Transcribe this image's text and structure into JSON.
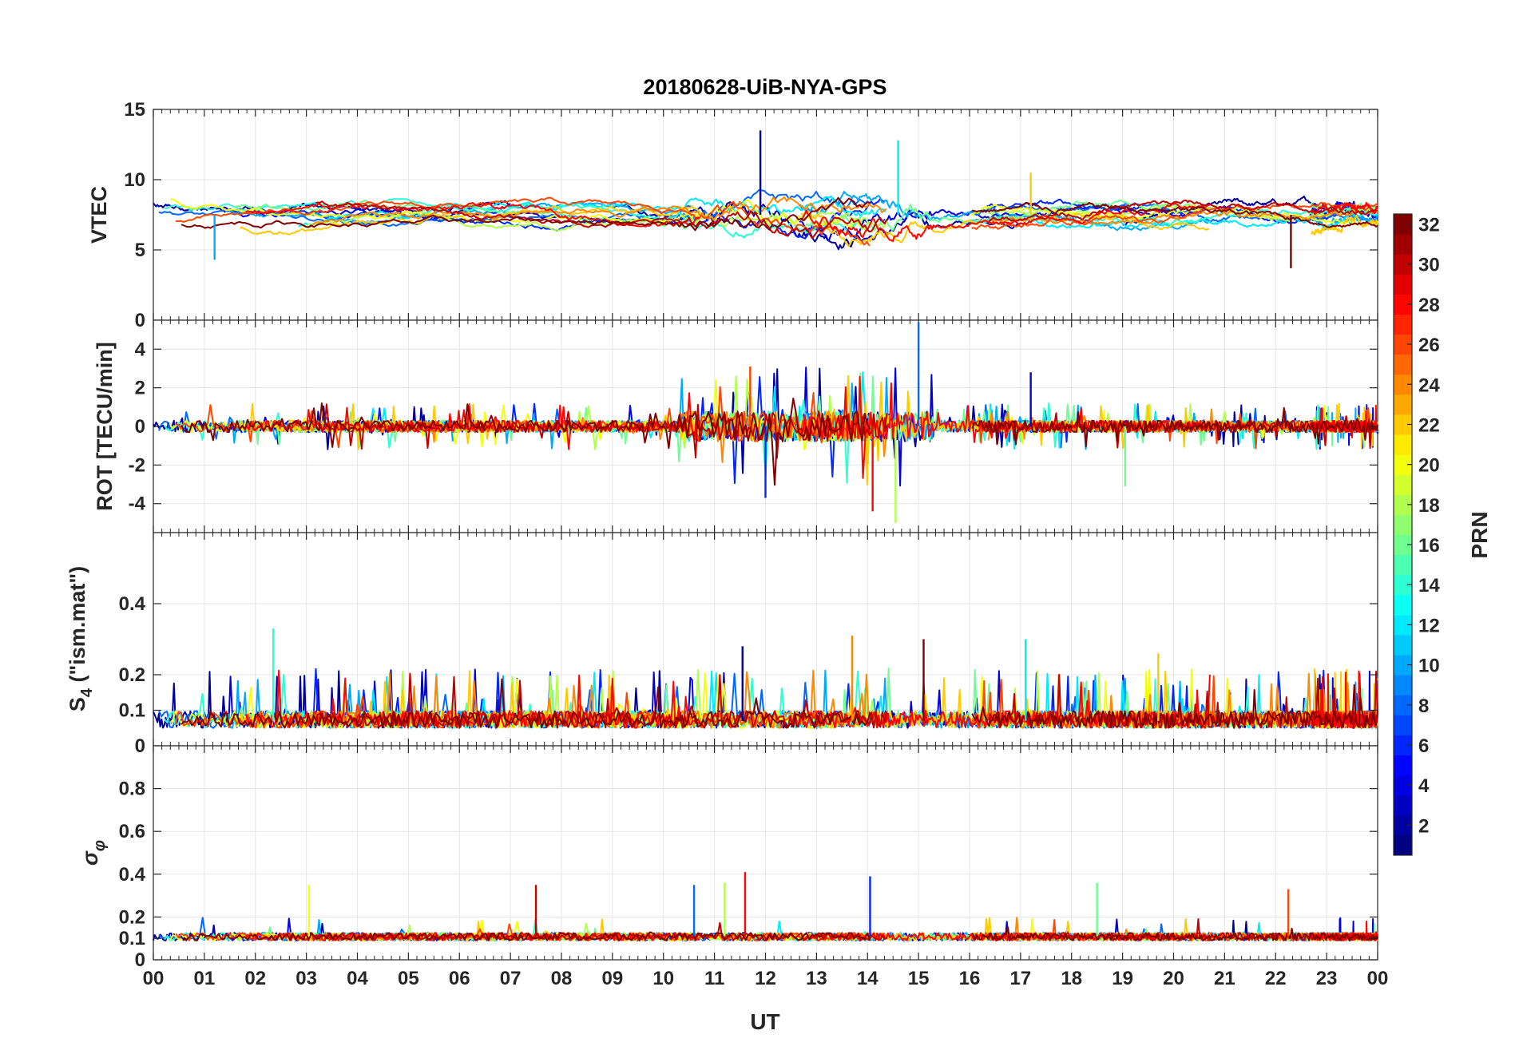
{
  "chart_data": {
    "type": "line",
    "title": "20180628-UiB-NYA-GPS",
    "xlabel": "UT",
    "x_range": [
      0,
      24
    ],
    "x_tick_labels": [
      "00",
      "01",
      "02",
      "03",
      "04",
      "05",
      "06",
      "07",
      "08",
      "09",
      "10",
      "11",
      "12",
      "13",
      "14",
      "15",
      "16",
      "17",
      "18",
      "19",
      "20",
      "21",
      "22",
      "23",
      "00"
    ],
    "grid": true,
    "colorbar": {
      "label": "PRN",
      "range": [
        1,
        32
      ],
      "tick_labels": [
        "2",
        "4",
        "6",
        "8",
        "10",
        "12",
        "14",
        "16",
        "18",
        "20",
        "22",
        "24",
        "26",
        "28",
        "30",
        "32"
      ],
      "tick_values": [
        2,
        4,
        6,
        8,
        10,
        12,
        14,
        16,
        18,
        20,
        22,
        24,
        26,
        28,
        30,
        32
      ]
    },
    "series_prns": [
      2,
      4,
      6,
      8,
      10,
      12,
      14,
      16,
      18,
      20,
      22,
      24,
      26,
      28,
      30,
      32
    ],
    "panels": [
      {
        "id": "vtec",
        "ylabel": "VTEC",
        "ylim": [
          0,
          15
        ],
        "y_ticks": [
          0,
          5,
          10,
          15
        ],
        "y_tick_labels": [
          "0",
          "5",
          "10",
          "15"
        ],
        "baseline": 7.5,
        "amplitude": 1.0,
        "spikes": [
          {
            "t": 11.9,
            "v": 13.5
          },
          {
            "t": 14.6,
            "v": 12.8
          },
          {
            "t": 17.2,
            "v": 10.5
          },
          {
            "t": 22.3,
            "v": 3.7
          },
          {
            "t": 1.2,
            "v": 4.3
          }
        ]
      },
      {
        "id": "rot",
        "ylabel": "ROT [TECU/min]",
        "ylim": [
          -5.5,
          5.5
        ],
        "y_ticks": [
          -4,
          -2,
          0,
          2,
          4
        ],
        "y_tick_labels": [
          "-4",
          "-2",
          "0",
          "2",
          "4"
        ],
        "baseline": 0,
        "amplitude": 0.3,
        "spikes": [
          {
            "t": 15.0,
            "v": 5.4
          },
          {
            "t": 14.55,
            "v": -5.0
          },
          {
            "t": 14.1,
            "v": -4.4
          },
          {
            "t": 12.0,
            "v": -3.7
          },
          {
            "t": 19.05,
            "v": -3.1
          },
          {
            "t": 11.7,
            "v": 3.1
          },
          {
            "t": 17.2,
            "v": 2.8
          }
        ]
      },
      {
        "id": "s4",
        "ylabel": "S4 (\"ism.mat\")",
        "ylabel_main": "S",
        "ylabel_sub": "4",
        "ylabel_rest": " (\"ism.mat\")",
        "ylim": [
          0,
          0.6
        ],
        "y_ticks": [
          0,
          0.1,
          0.2,
          0.4
        ],
        "y_tick_labels": [
          "0",
          "0.1",
          "0.2",
          "0.4"
        ],
        "baseline": 0.07,
        "amplitude": 0.03,
        "spikes": [
          {
            "t": 2.35,
            "v": 0.33
          },
          {
            "t": 13.7,
            "v": 0.31
          },
          {
            "t": 11.55,
            "v": 0.28
          },
          {
            "t": 17.1,
            "v": 0.3
          },
          {
            "t": 19.7,
            "v": 0.26
          },
          {
            "t": 15.1,
            "v": 0.3
          }
        ]
      },
      {
        "id": "sigphi",
        "ylabel": "σφ",
        "ylabel_main": "σ",
        "ylabel_sub": "φ",
        "ylim": [
          0,
          1
        ],
        "y_ticks": [
          0,
          0.1,
          0.2,
          0.4,
          0.6,
          0.8
        ],
        "y_tick_labels": [
          "0",
          "0.1",
          "0.2",
          "0.4",
          "0.6",
          "0.8"
        ],
        "baseline": 0.11,
        "amplitude": 0.02,
        "spikes": [
          {
            "t": 3.05,
            "v": 0.35
          },
          {
            "t": 7.5,
            "v": 0.35
          },
          {
            "t": 10.6,
            "v": 0.35
          },
          {
            "t": 11.2,
            "v": 0.36
          },
          {
            "t": 11.6,
            "v": 0.41
          },
          {
            "t": 14.05,
            "v": 0.39
          },
          {
            "t": 18.5,
            "v": 0.36
          },
          {
            "t": 22.25,
            "v": 0.33
          }
        ]
      }
    ]
  }
}
